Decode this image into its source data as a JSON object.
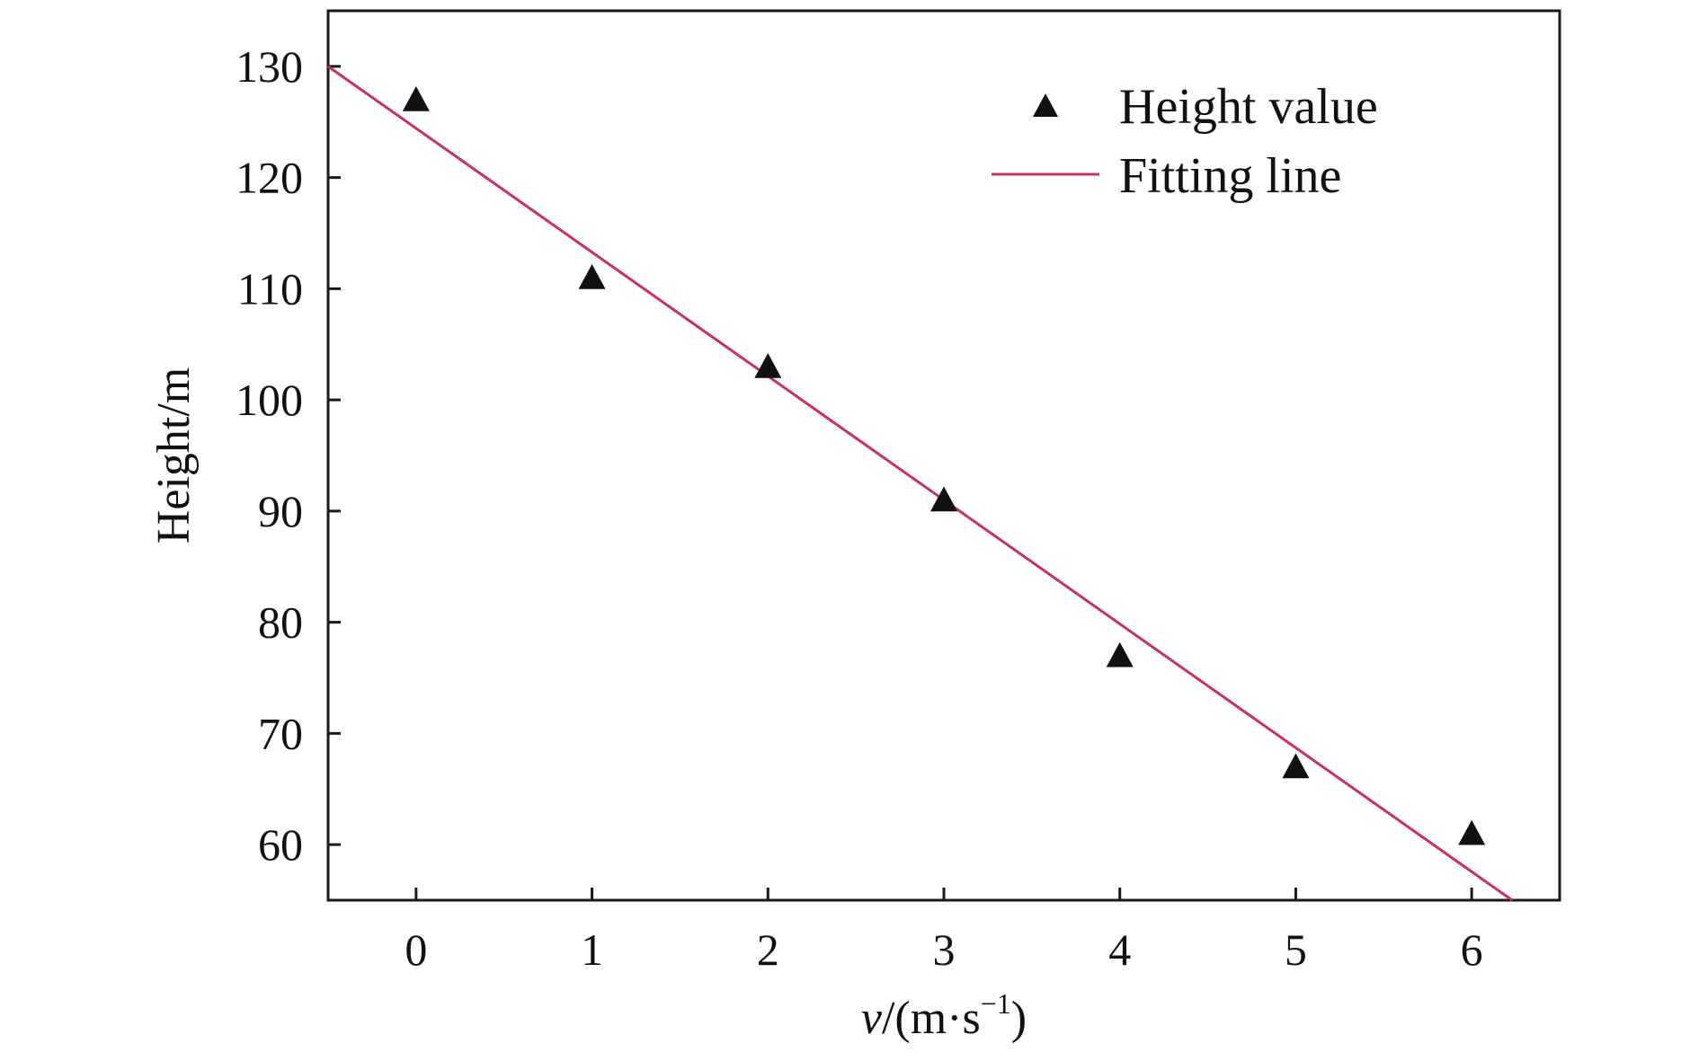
{
  "colors": {
    "marker": "#111111",
    "fit_line": "#c8325a",
    "axis": "#1a1a1a"
  },
  "chart_data": {
    "type": "scatter",
    "xlabel": {
      "italic": "v",
      "rest": "/(m·s",
      "sup": "−1",
      "close": ")"
    },
    "ylabel": "Height/m",
    "xlim": [
      -0.5,
      6.5
    ],
    "ylim": [
      55,
      135
    ],
    "xticks": [
      0,
      1,
      2,
      3,
      4,
      5,
      6
    ],
    "yticks": [
      60,
      70,
      80,
      90,
      100,
      110,
      120,
      130
    ],
    "grid": false,
    "legend_position": "top-right",
    "series": [
      {
        "name": "Height value",
        "kind": "scatter",
        "marker": "triangle-up",
        "x": [
          0,
          1,
          2,
          3,
          4,
          5,
          6
        ],
        "y": [
          127,
          111,
          103,
          91,
          77,
          67,
          61
        ]
      },
      {
        "name": "Fitting line",
        "kind": "line",
        "x": [
          -0.5,
          6.23
        ],
        "y": [
          130,
          55
        ]
      }
    ]
  }
}
